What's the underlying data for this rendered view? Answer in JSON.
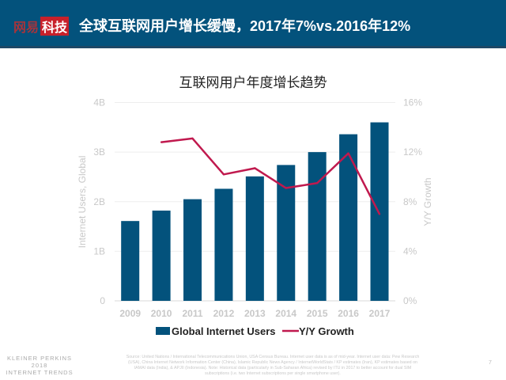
{
  "header": {
    "logo_part1": "网易",
    "logo_part2": "科技",
    "title": "全球互联网用户增长缓慢，2017年7%vs.2016年12%"
  },
  "colors": {
    "header_bg": "#03527c",
    "bar": "#03527c",
    "line": "#c0194e",
    "axis_text": "#c8c8c8"
  },
  "chart_data": {
    "type": "bar+line",
    "title": "互联网用户年度增长趋势",
    "categories": [
      "2009",
      "2010",
      "2011",
      "2012",
      "2013",
      "2014",
      "2015",
      "2016",
      "2017"
    ],
    "series": [
      {
        "name": "Global Internet Users",
        "type": "bar",
        "axis": "left",
        "values": [
          1.61,
          1.82,
          2.05,
          2.26,
          2.51,
          2.74,
          3.0,
          3.36,
          3.6
        ]
      },
      {
        "name": "Y/Y Growth",
        "type": "line",
        "axis": "right",
        "values": [
          null,
          12.8,
          13.1,
          10.2,
          10.7,
          9.1,
          9.5,
          11.9,
          7.0
        ]
      }
    ],
    "ylabel": "Internet Users, Global",
    "ylabel_right": "Y/Y Growth",
    "ylim": [
      0,
      4
    ],
    "ylim_right": [
      0,
      16
    ],
    "yticks": [
      "0",
      "1B",
      "2B",
      "3B",
      "4B"
    ],
    "yticks_right": [
      "0%",
      "4%",
      "8%",
      "12%",
      "16%"
    ],
    "grid": true,
    "legend": "bottom"
  },
  "footer": {
    "logo_lines": [
      "KLEINER PERKINS",
      "2018",
      "INTERNET TRENDS"
    ],
    "source": "Source: United Nations / International Telecommunications Union, USA Census Bureau. Internet user data is as of mid-year. Internet user data: Pew Research (USA), China Internet Network Information Center (China), Islamic Republic News Agency / InternetWorldStats / KP estimates (Iran), KP estimates based on IAMAI data (India), & APJII (Indonesia). Note: Historical data (particularly in Sub-Saharan Africa) revised by ITU in 2017 to better account for dual SIM subscriptions (i.e. two Internet subscriptions per single smartphone user).",
    "page": "7"
  }
}
